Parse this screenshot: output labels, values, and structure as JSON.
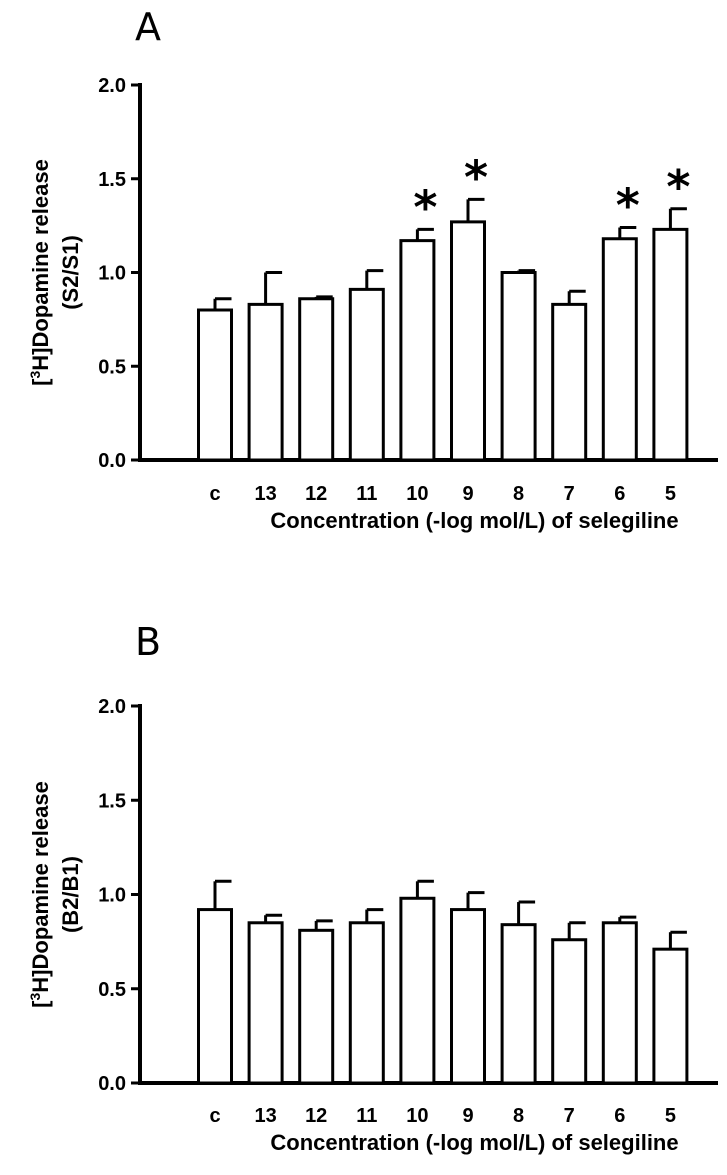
{
  "chart_data": [
    {
      "type": "bar",
      "panel_label": "A",
      "categories": [
        "c",
        "13",
        "12",
        "11",
        "10",
        "9",
        "8",
        "7",
        "6",
        "5"
      ],
      "values": [
        0.8,
        0.83,
        0.86,
        0.91,
        1.17,
        1.27,
        1.0,
        0.83,
        1.18,
        1.23
      ],
      "errors": [
        0.06,
        0.17,
        0.01,
        0.1,
        0.06,
        0.12,
        0.01,
        0.07,
        0.06,
        0.11
      ],
      "significant": [
        false,
        false,
        false,
        false,
        true,
        true,
        false,
        false,
        true,
        true
      ],
      "significance_marker": "*",
      "ylabel_line1": "[",
      "ylabel_sup": "3",
      "ylabel_line1_rest": "H]Dopamine release",
      "ylabel_line2": "(S2/S1)",
      "xlabel": "Concentration (-log mol/L) of selegiline",
      "ylim": [
        0,
        2.0
      ],
      "yticks": [
        "0.0",
        "0.5",
        "1.0",
        "1.5",
        "2.0"
      ]
    },
    {
      "type": "bar",
      "panel_label": "B",
      "categories": [
        "c",
        "13",
        "12",
        "11",
        "10",
        "9",
        "8",
        "7",
        "6",
        "5"
      ],
      "values": [
        0.92,
        0.85,
        0.81,
        0.85,
        0.98,
        0.92,
        0.84,
        0.76,
        0.85,
        0.71
      ],
      "errors": [
        0.15,
        0.04,
        0.05,
        0.07,
        0.09,
        0.09,
        0.12,
        0.09,
        0.03,
        0.09
      ],
      "significant": [
        false,
        false,
        false,
        false,
        false,
        false,
        false,
        false,
        false,
        false
      ],
      "significance_marker": "*",
      "ylabel_line1": "[",
      "ylabel_sup": "3",
      "ylabel_line1_rest": "H]Dopamine release",
      "ylabel_line2": "(B2/B1)",
      "xlabel": "Concentration (-log mol/L) of selegiline",
      "ylim": [
        0,
        2.0
      ],
      "yticks": [
        "0.0",
        "0.5",
        "1.0",
        "1.5",
        "2.0"
      ]
    }
  ]
}
